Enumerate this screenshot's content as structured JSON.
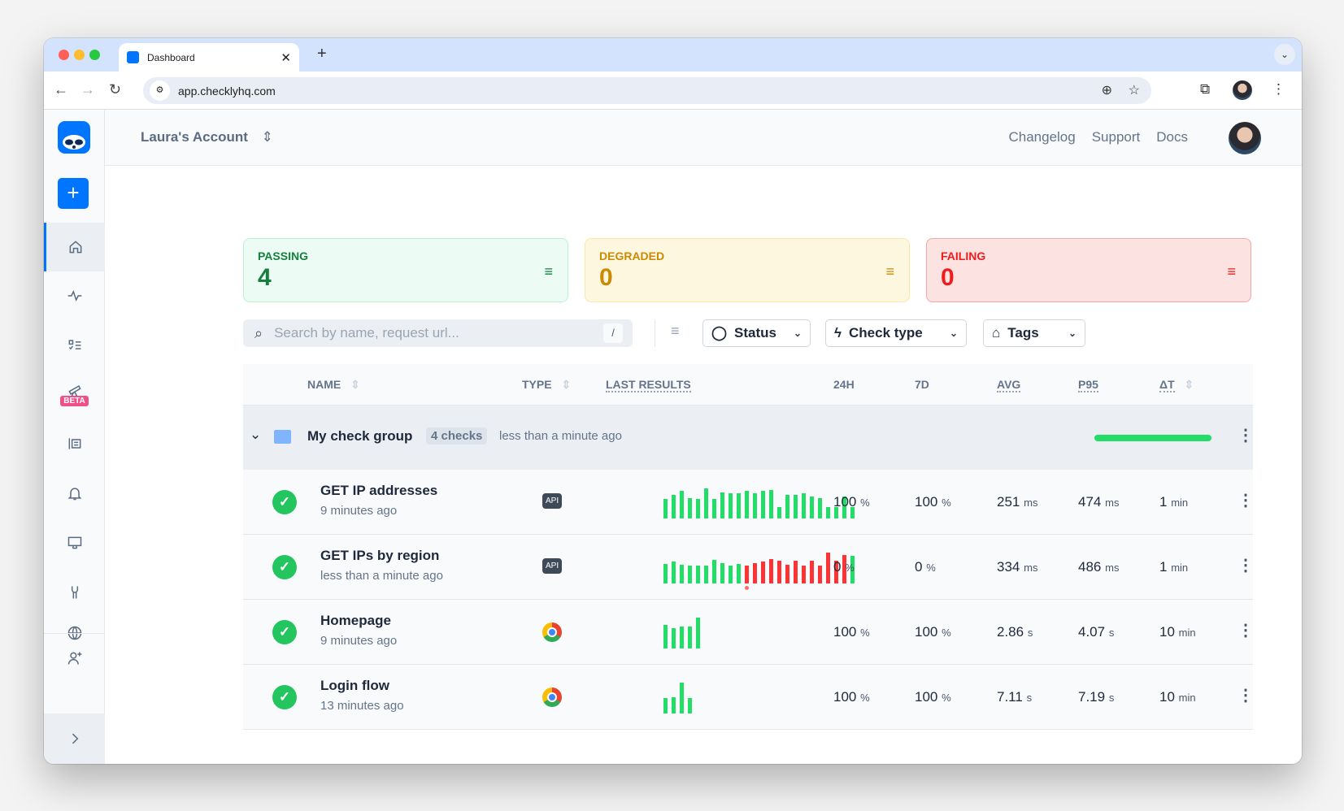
{
  "browser": {
    "tab_title": "Dashboard",
    "url": "app.checklyhq.com"
  },
  "header": {
    "account": "Laura's Account",
    "links": [
      "Changelog",
      "Support",
      "Docs"
    ]
  },
  "sidebar": {
    "beta_label": "BETA",
    "items": [
      "home",
      "activity",
      "checks",
      "explore",
      "logs",
      "alerts",
      "dashboards",
      "settings",
      "global",
      "invite",
      "expand"
    ]
  },
  "cards": [
    {
      "label": "PASSING",
      "value": "4",
      "color": "#15803d",
      "bg": "#ecfbf3",
      "border": "#bbf0d2"
    },
    {
      "label": "DEGRADED",
      "value": "0",
      "color": "#ca8a04",
      "bg": "#fef7e0",
      "border": "#fde7a4"
    },
    {
      "label": "FAILING",
      "value": "0",
      "color": "#ef1c1c",
      "bg": "#fde2e2",
      "border": "#f8a5a5"
    }
  ],
  "search": {
    "placeholder": "Search by name, request url...",
    "shortcut": "/"
  },
  "filters": [
    "Status",
    "Check type",
    "Tags"
  ],
  "table": {
    "columns": [
      "NAME",
      "TYPE",
      "LAST RESULTS",
      "24H",
      "7D",
      "AVG",
      "P95",
      "ΔT"
    ],
    "group": {
      "name": "My check group",
      "count": "4 checks",
      "updated": "less than a minute ago",
      "progress": 100
    },
    "rows": [
      {
        "name": "GET IP addresses",
        "ago": "9 minutes ago",
        "type": "API",
        "d24": "100",
        "d7": "100",
        "avg": "251",
        "avg_u": "ms",
        "p95": "474",
        "p95_u": "ms",
        "dt": "1",
        "dt_u": "min",
        "results": [
          24,
          29,
          34,
          25,
          24,
          37,
          24,
          32,
          31,
          31,
          34,
          31,
          34,
          35,
          14,
          29,
          29,
          31,
          27,
          25,
          14,
          14,
          27,
          14
        ],
        "failed": []
      },
      {
        "name": "GET IPs by region",
        "ago": "less than a minute ago",
        "type": "API",
        "d24": "0",
        "d7": "0",
        "avg": "334",
        "avg_u": "ms",
        "p95": "486",
        "p95_u": "ms",
        "dt": "1",
        "dt_u": "min",
        "results": [
          24,
          27,
          23,
          22,
          22,
          22,
          29,
          25,
          22,
          24,
          22,
          25,
          27,
          30,
          28,
          23,
          28,
          22,
          28,
          22,
          38,
          28,
          35,
          34
        ],
        "failed": [
          10,
          11,
          12,
          13,
          14,
          15,
          16,
          17,
          18,
          19,
          20,
          21,
          22
        ],
        "marker": 10
      },
      {
        "name": "Homepage",
        "ago": "9 minutes ago",
        "type": "browser",
        "d24": "100",
        "d7": "100",
        "avg": "2.86",
        "avg_u": "s",
        "p95": "4.07",
        "p95_u": "s",
        "dt": "10",
        "dt_u": "min",
        "results": [
          29,
          25,
          27,
          27,
          38
        ],
        "failed": []
      },
      {
        "name": "Login flow",
        "ago": "13 minutes ago",
        "type": "browser",
        "d24": "100",
        "d7": "100",
        "avg": "7.11",
        "avg_u": "s",
        "p95": "7.19",
        "p95_u": "s",
        "dt": "10",
        "dt_u": "min",
        "results": [
          19,
          20,
          38,
          19
        ],
        "failed": []
      }
    ],
    "pct_unit": "%"
  },
  "colors": {
    "accent": "#0075ff",
    "pass": "#22dd66",
    "fail": "#ff3333"
  }
}
